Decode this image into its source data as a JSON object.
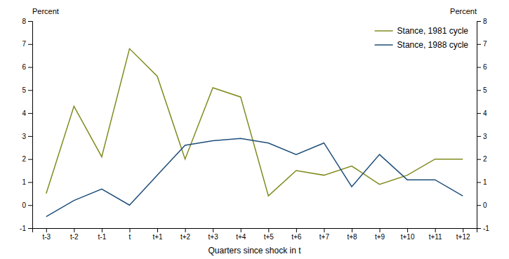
{
  "chart_data": {
    "type": "line",
    "x_label": "Quarters since shock in t",
    "y_label": "Percent",
    "y2_label": "Percent",
    "categories": [
      "t-3",
      "t-2",
      "t-1",
      "t",
      "t+1",
      "t+2",
      "t+3",
      "t+4",
      "t+5",
      "t+6",
      "t+7",
      "t+8",
      "t+9",
      "t+10",
      "t+11",
      "t+12"
    ],
    "series": [
      {
        "name": "Stance, 1981 cycle",
        "color": "#808b1e",
        "values": [
          0.5,
          4.3,
          2.1,
          6.8,
          5.6,
          2.0,
          5.1,
          4.7,
          0.4,
          1.5,
          1.3,
          1.7,
          0.9,
          1.3,
          2.0,
          2.0
        ]
      },
      {
        "name": "Stance, 1988 cycle",
        "color": "#1f4e79",
        "values": [
          -0.5,
          0.2,
          0.7,
          0.0,
          1.3,
          2.6,
          2.8,
          2.9,
          2.7,
          2.2,
          2.7,
          0.8,
          2.2,
          1.1,
          1.1,
          0.4
        ]
      }
    ],
    "ylim": [
      -1,
      8
    ],
    "yticks": [
      -1,
      0,
      1,
      2,
      3,
      4,
      5,
      6,
      7,
      8
    ],
    "y2lim": [
      -1,
      8
    ],
    "y2ticks": [
      -1,
      0,
      1,
      2,
      3,
      4,
      5,
      6,
      7,
      8
    ],
    "grid": false,
    "legend": "upper right"
  }
}
